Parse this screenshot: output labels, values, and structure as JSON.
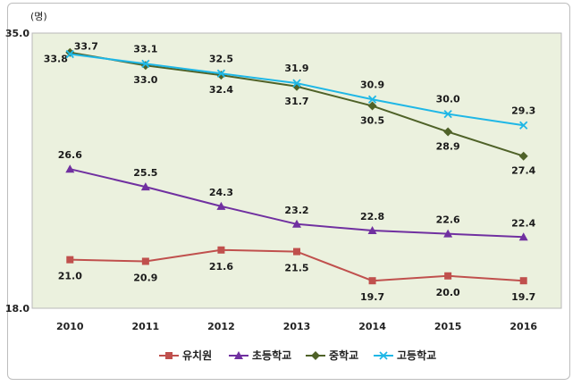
{
  "chart_data": {
    "type": "line",
    "unit_label": "(명)",
    "y_ticks": [
      "35.0",
      "18.0"
    ],
    "ylim": [
      18.0,
      35.0
    ],
    "x": [
      "2010",
      "2011",
      "2012",
      "2013",
      "2014",
      "2015",
      "2016"
    ],
    "series": [
      {
        "name": "유치원",
        "color": "#c0504d",
        "marker": "square",
        "values": [
          21.0,
          20.9,
          21.6,
          21.5,
          19.7,
          20.0,
          19.7
        ],
        "labels": [
          "21.0",
          "20.9",
          "21.6",
          "21.5",
          "19.7",
          "20.0",
          "19.7"
        ]
      },
      {
        "name": "초등학교",
        "color": "#7030a0",
        "marker": "triangle",
        "values": [
          26.6,
          25.5,
          24.3,
          23.2,
          22.8,
          22.6,
          22.4
        ],
        "labels": [
          "26.6",
          "25.5",
          "24.3",
          "23.2",
          "22.8",
          "22.6",
          "22.4"
        ]
      },
      {
        "name": "중학교",
        "color": "#4f6228",
        "marker": "diamond",
        "values": [
          33.8,
          33.0,
          32.4,
          31.7,
          30.5,
          28.9,
          27.4
        ],
        "labels": [
          "33.8",
          "33.0",
          "32.4",
          "31.7",
          "30.5",
          "28.9",
          "27.4"
        ]
      },
      {
        "name": "고등학교",
        "color": "#1fb7e6",
        "marker": "x",
        "values": [
          33.7,
          33.1,
          32.5,
          31.9,
          30.9,
          30.0,
          29.3
        ],
        "labels": [
          "33.7",
          "33.1",
          "32.5",
          "31.9",
          "30.9",
          "30.0",
          "29.3"
        ]
      }
    ],
    "plot_background": "#ebf1de",
    "grid": false,
    "legend_position": "bottom"
  }
}
